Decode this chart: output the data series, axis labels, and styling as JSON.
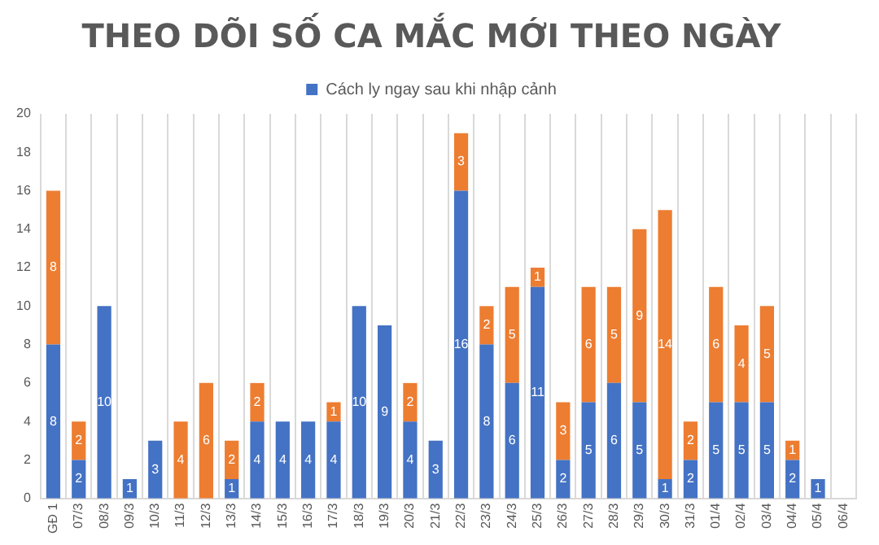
{
  "chart_data": {
    "type": "bar",
    "title": "THEO DÕI SỐ CA MẮC MỚI THEO NGÀY",
    "categories": [
      "GĐ 1",
      "07/3",
      "08/3",
      "09/3",
      "10/3",
      "11/3",
      "12/3",
      "13/3",
      "14/3",
      "15/3",
      "16/3",
      "17/3",
      "18/3",
      "19/3",
      "20/3",
      "21/3",
      "22/3",
      "23/3",
      "24/3",
      "25/3",
      "26/3",
      "27/3",
      "28/3",
      "29/3",
      "30/3",
      "31/3",
      "01/4",
      "02/4",
      "03/4",
      "04/4",
      "05/4",
      "06/4"
    ],
    "series": [
      {
        "name": "Cách ly ngay sau khi nhập cảnh",
        "color": "#4472c4",
        "values": [
          8,
          2,
          10,
          1,
          3,
          null,
          null,
          1,
          4,
          4,
          4,
          4,
          10,
          9,
          4,
          3,
          16,
          8,
          6,
          11,
          2,
          5,
          6,
          5,
          1,
          2,
          5,
          5,
          5,
          2,
          1,
          null
        ]
      },
      {
        "color": "#ed7d31",
        "values": [
          8,
          2,
          null,
          null,
          null,
          4,
          6,
          2,
          2,
          null,
          null,
          1,
          null,
          null,
          2,
          null,
          3,
          2,
          5,
          1,
          3,
          6,
          5,
          9,
          14,
          2,
          6,
          4,
          5,
          1,
          null,
          null
        ]
      }
    ],
    "stacked": true,
    "ylim": [
      0,
      20
    ],
    "yticks": [
      0,
      2,
      4,
      6,
      8,
      10,
      12,
      14,
      16,
      18,
      20
    ],
    "grid": "x",
    "legend": "top",
    "data_labels": true
  }
}
